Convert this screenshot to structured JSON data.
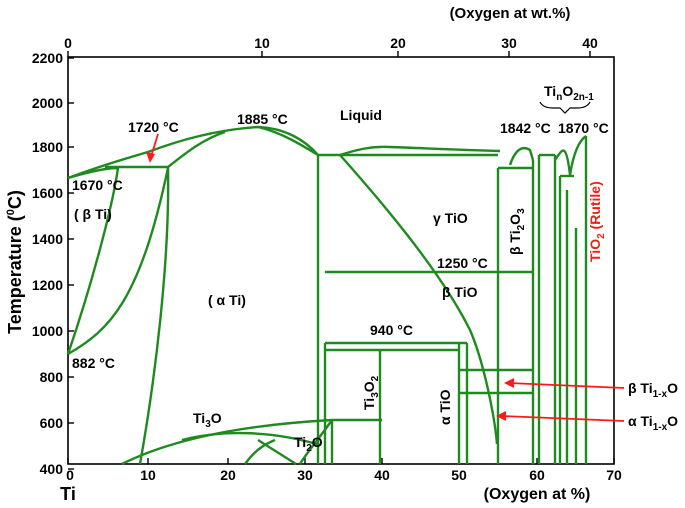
{
  "top_axis": {
    "title": "(Oxygen at wt.%)",
    "ticks": [
      "0",
      "10",
      "20",
      "30",
      "40"
    ]
  },
  "bottom_axis": {
    "title": "(Oxygen at %)",
    "origin_label": "Ti",
    "ticks": [
      "0",
      "10",
      "20",
      "30",
      "40",
      "50",
      "60",
      "70"
    ]
  },
  "y_axis": {
    "title_part1": "Temperature (",
    "title_sup": "0",
    "title_part2": "C)",
    "ticks": [
      "400",
      "600",
      "800",
      "1000",
      "1200",
      "1400",
      "1600",
      "1800",
      "2000",
      "2200"
    ]
  },
  "labels": {
    "liquid": "Liquid",
    "beta_ti": "( β Ti)",
    "alpha_ti": "( α Ti)",
    "t1720": "1720 °C",
    "t1885": "1885 °C",
    "t1670": "1670 °C",
    "t882": "882 °C",
    "t1842": "1842 °C",
    "t1870": "1870 °C",
    "t1250": "1250 °C",
    "t940": "940 °C",
    "gamma_tio": "γ TiO",
    "beta_tio": "β TiO",
    "alpha_tio": "α TiO",
    "ti3o": "Ti",
    "ti3o_sub": "3",
    "ti3o_end": "O",
    "ti2o": "Ti",
    "ti2o_sub": "2",
    "ti2o_end": "O",
    "ti3o2": "Ti",
    "ti3o2_sub1": "3",
    "ti3o2_mid": "O",
    "ti3o2_sub2": "2",
    "beta_ti2o3": "β Ti",
    "beta_ti2o3_sub1": "2",
    "beta_ti2o3_mid": "O",
    "beta_ti2o3_sub2": "3",
    "tino": "Ti",
    "tino_sub1": "n",
    "tino_mid": "O",
    "tino_sub2": "2n-1",
    "rutile": "TiO",
    "rutile_sub": "2",
    "rutile_end": " (Rutile)",
    "beta_ti1x": "β Ti",
    "beta_ti1x_sub": "1-x",
    "beta_ti1x_end": "O",
    "alpha_ti1x": "α Ti",
    "alpha_ti1x_sub": "1-x",
    "alpha_ti1x_end": "O"
  },
  "colors": {
    "phase_lines": "#1f8a1f",
    "arrows": "#ff1a1a",
    "rutile_text": "#e8231a"
  }
}
